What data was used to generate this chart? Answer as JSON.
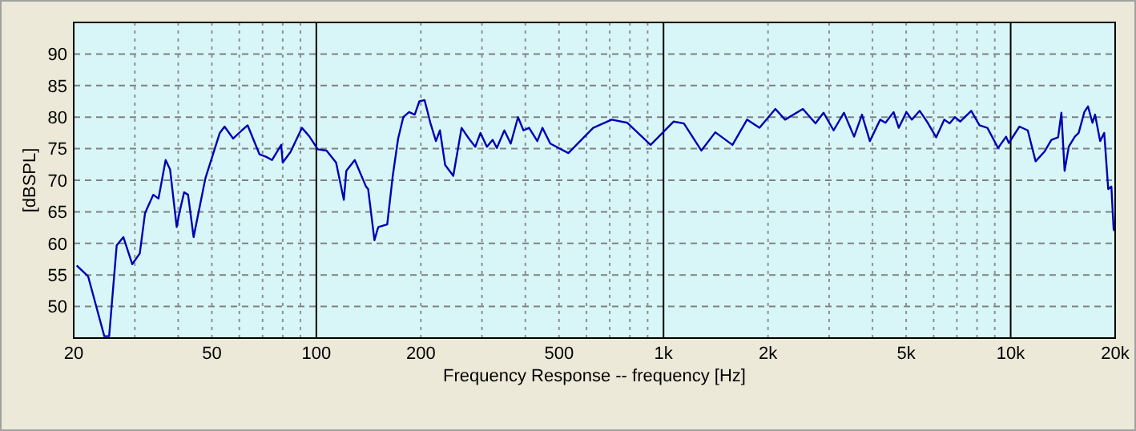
{
  "chart_data": {
    "type": "line",
    "xlabel": "Frequency Response -- frequency [Hz]",
    "ylabel": "[dBSPL]",
    "log": "x",
    "grid": true,
    "xlim": [
      20,
      20000
    ],
    "ylim": [
      45,
      95
    ],
    "xticks": [
      20,
      {
        "value": 30,
        "label": null
      },
      {
        "value": 40,
        "label": null
      },
      50,
      {
        "value": 60,
        "label": null
      },
      {
        "value": 70,
        "label": null
      },
      {
        "value": 80,
        "label": null
      },
      {
        "value": 90,
        "label": null
      },
      100,
      200,
      {
        "value": 300,
        "label": null
      },
      {
        "value": 400,
        "label": null
      },
      500,
      {
        "value": 600,
        "label": null
      },
      {
        "value": 700,
        "label": null
      },
      {
        "value": 800,
        "label": null
      },
      {
        "value": 900,
        "label": null
      },
      {
        "value": 1000,
        "label": "1k"
      },
      {
        "value": 2000,
        "label": "2k"
      },
      {
        "value": 3000,
        "label": null
      },
      {
        "value": 4000,
        "label": null
      },
      {
        "value": 5000,
        "label": "5k"
      },
      {
        "value": 6000,
        "label": null
      },
      {
        "value": 7000,
        "label": null
      },
      {
        "value": 8000,
        "label": null
      },
      {
        "value": 9000,
        "label": null
      },
      {
        "value": 10000,
        "label": "10k"
      },
      {
        "value": 20000,
        "label": "20k"
      }
    ],
    "yticks": [
      50,
      55,
      60,
      65,
      70,
      75,
      80,
      85,
      90
    ],
    "series": [
      {
        "color": "#0000b4",
        "x": [
          20.4,
          22,
          24.5,
          25.3,
          26.6,
          27.8,
          29.5,
          31,
          32.1,
          33.9,
          35.1,
          36.8,
          37.9,
          39.6,
          40.3,
          41.6,
          42.7,
          44.3,
          47.9,
          52.7,
          54.4,
          57.6,
          61,
          63.4,
          68.6,
          71.8,
          74.5,
          79.2,
          80,
          84.3,
          90.9,
          95.3,
          101,
          107,
          114,
          120,
          122,
          129,
          139,
          141,
          147,
          150,
          151,
          160,
          166,
          172,
          178,
          185,
          192,
          198,
          205,
          213,
          221,
          227,
          235,
          248,
          262,
          275,
          287,
          297,
          310,
          322,
          331,
          348,
          363,
          381,
          395,
          410,
          433,
          448,
          472,
          532,
          627,
          709,
          787,
          918,
          1070,
          1145,
          1285,
          1410,
          1580,
          1740,
          1890,
          2100,
          2240,
          2520,
          2740,
          2890,
          3090,
          3310,
          3540,
          3730,
          3930,
          4210,
          4360,
          4600,
          4760,
          5010,
          5190,
          5470,
          5770,
          6100,
          6440,
          6670,
          6910,
          7160,
          7700,
          8130,
          8570,
          9200,
          9700,
          9880,
          10600,
          11200,
          11800,
          12500,
          13100,
          13700,
          14000,
          14300,
          14700,
          15300,
          15700,
          16300,
          16700,
          17200,
          17500,
          18100,
          18600,
          19100,
          19500,
          19800,
          19900
        ],
        "values": [
          56.5,
          54.8,
          45.3,
          45.3,
          59.7,
          61,
          56.7,
          58.4,
          64.8,
          67.7,
          67.1,
          73.2,
          71.7,
          62.6,
          64.8,
          68.1,
          67.7,
          61,
          70.3,
          77.5,
          78.5,
          76.6,
          77.9,
          78.7,
          74.1,
          73.7,
          73.2,
          75.6,
          72.8,
          74.5,
          78.3,
          77,
          74.9,
          74.7,
          72.8,
          66.9,
          71.5,
          73.2,
          69,
          68.6,
          60.5,
          62.2,
          62.6,
          63,
          70.7,
          76.6,
          80,
          80.8,
          80.4,
          82.5,
          82.7,
          79.1,
          76.2,
          77.9,
          72.4,
          70.7,
          78.3,
          76.6,
          75.3,
          77.5,
          75.3,
          76.4,
          75.1,
          77.9,
          75.8,
          80,
          77.9,
          78.3,
          76.2,
          78.3,
          75.8,
          74.3,
          78.3,
          79.6,
          79.1,
          75.6,
          79.3,
          79,
          74.7,
          77.6,
          75.6,
          79.6,
          78.3,
          81.3,
          79.6,
          81.3,
          79,
          80.7,
          77.9,
          80.7,
          76.9,
          80.4,
          76.2,
          79.6,
          79.1,
          80.8,
          78.3,
          80.8,
          79.6,
          81,
          79.1,
          76.8,
          79.6,
          79,
          80,
          79.3,
          81,
          78.7,
          78.3,
          75.1,
          76.9,
          75.9,
          78.5,
          77.9,
          73,
          74.5,
          76.4,
          76.8,
          80.7,
          71.5,
          75.3,
          76.9,
          77.5,
          80.8,
          81.7,
          79.1,
          80.4,
          76.2,
          77.5,
          68.6,
          69,
          62.2,
          62
        ]
      }
    ]
  }
}
